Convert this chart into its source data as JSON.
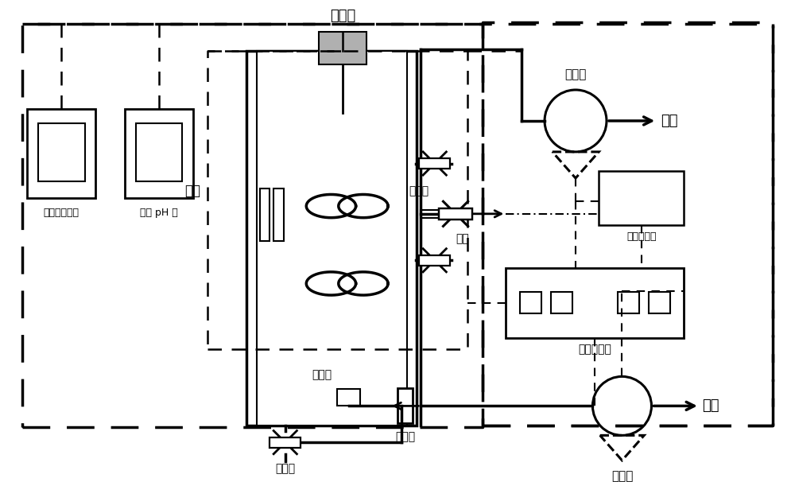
{
  "bg_color": "#ffffff",
  "labels": {
    "stirrer": "搅拌器",
    "water_bath": "水浴",
    "inlet_pump": "进水泵",
    "inlet_water": "进水",
    "solenoid": "电磁阀",
    "outlet_water": "出水",
    "level_controller": "液位控制器",
    "time_controller": "时间控制器",
    "aeration_head": "曝气头",
    "drain_valve": "放空阀",
    "flowmeter": "流量计",
    "air_compressor": "空压机",
    "air": "空气",
    "do_meter": "在线溶解氧仪",
    "ph_meter": "在线 pH 仪"
  }
}
